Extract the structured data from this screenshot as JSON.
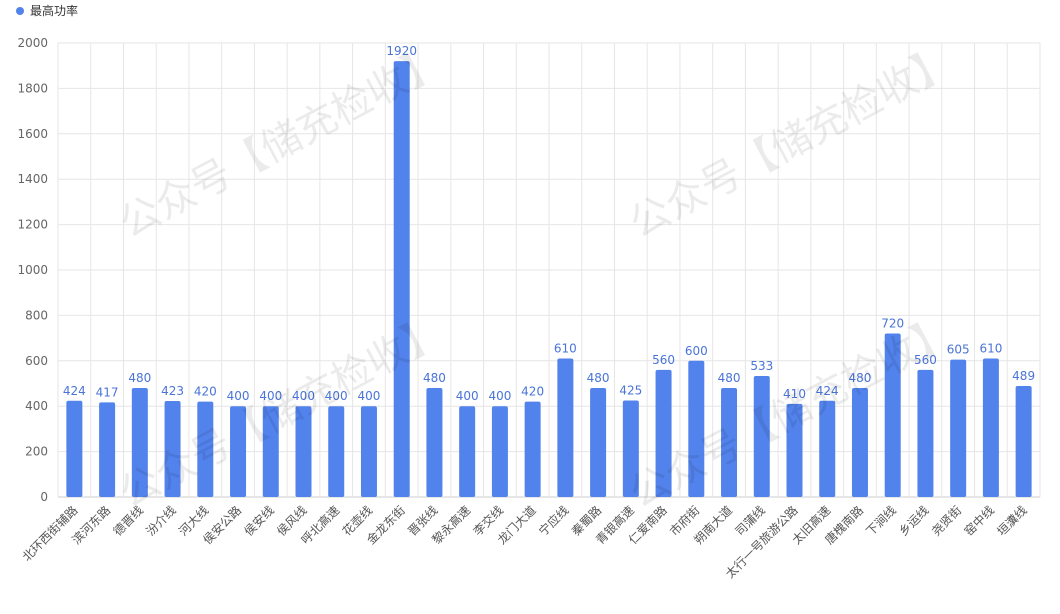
{
  "legend": {
    "label": "最高功率",
    "color": "#5282eb"
  },
  "watermark": "公众号【储充检收】",
  "chart_data": {
    "type": "bar",
    "ylim": [
      0,
      2000
    ],
    "yticks": [
      0,
      200,
      400,
      600,
      800,
      1000,
      1200,
      1400,
      1600,
      1800,
      2000
    ],
    "grid": true,
    "legend_position": "top-left",
    "bar_color": "#5282eb",
    "categories": [
      "北环西街辅路",
      "滨河东路",
      "德晋线",
      "汾介线",
      "河大线",
      "侯安公路",
      "侯安线",
      "侯风线",
      "呼北高速",
      "花壶线",
      "金龙东街",
      "晋张线",
      "黎永高速",
      "李交线",
      "龙门大道",
      "宁应线",
      "秦蜀路",
      "青银高速",
      "仁爱南路",
      "市府街",
      "朔南大道",
      "司蒲线",
      "太行一号旅游公路",
      "太旧高速",
      "唐槐南路",
      "下涧线",
      "乡运线",
      "尧贤街",
      "窑中线",
      "垣瀵线"
    ],
    "series": [
      {
        "name": "最高功率",
        "values": [
          424,
          417,
          480,
          423,
          420,
          400,
          400,
          400,
          400,
          400,
          1920,
          480,
          400,
          400,
          420,
          610,
          480,
          425,
          560,
          600,
          480,
          533,
          410,
          424,
          480,
          720,
          560,
          605,
          610,
          489
        ]
      }
    ]
  }
}
